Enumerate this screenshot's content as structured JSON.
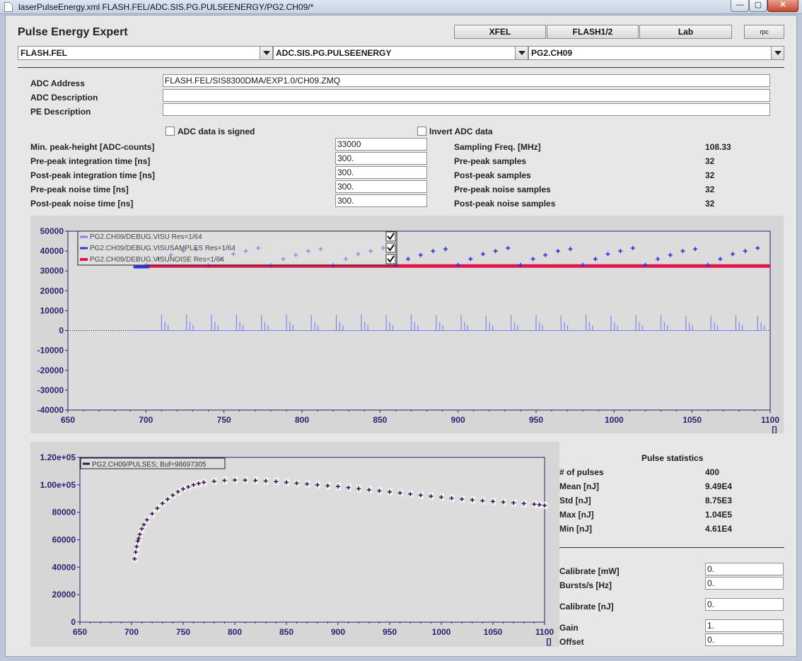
{
  "window": {
    "title": "laserPulseEnergy.xml   FLASH.FEL/ADC.SIS.PG.PULSEENERGY/PG2.CH09/*",
    "min_glyph": "—",
    "max_glyph": "▢",
    "close_glyph": "✕"
  },
  "header": {
    "app_title": "Pulse Energy Expert",
    "buttons": [
      "XFEL",
      "FLASH1/2",
      "Lab"
    ],
    "rpc_label": "rpc"
  },
  "selectors": {
    "facility": "FLASH.FEL",
    "device": "ADC.SIS.PG.PULSEENERGY",
    "channel": "PG2.CH09"
  },
  "adc": {
    "address_label": "ADC Address",
    "address_value": "FLASH.FEL/SIS8300DMA/EXP1.0/CH09.ZMQ",
    "description_label": "ADC Description",
    "description_value": "",
    "pe_description_label": "PE Description",
    "pe_description_value": "",
    "signed_label": "ADC data is signed",
    "signed_checked": false,
    "invert_label": "Invert ADC data",
    "invert_checked": false
  },
  "params_left": [
    {
      "label": "Min. peak-height [ADC-counts]",
      "value": "33000"
    },
    {
      "label": "Pre-peak integration time [ns]",
      "value": "300."
    },
    {
      "label": "Post-peak integration time [ns]",
      "value": "300."
    },
    {
      "label": "Pre-peak noise time [ns]",
      "value": "300."
    },
    {
      "label": "Post-peak noise time [ns]",
      "value": "300."
    }
  ],
  "params_right": [
    {
      "label": "Sampling Freq. [MHz]",
      "value": "108.33"
    },
    {
      "label": "Pre-peak samples",
      "value": "32"
    },
    {
      "label": "Post-peak samples",
      "value": "32"
    },
    {
      "label": "Pre-peak noise samples",
      "value": "32"
    },
    {
      "label": "Post-peak noise samples",
      "value": "32"
    }
  ],
  "stats": {
    "title": "Pulse statistics",
    "rows": [
      {
        "label": "# of pulses",
        "value": "400"
      },
      {
        "label": "Mean [nJ]",
        "value": "9.49E4"
      },
      {
        "label": "Std [nJ]",
        "value": "8.75E3"
      },
      {
        "label": "Max [nJ]",
        "value": "1.04E5"
      },
      {
        "label": "Min [nJ]",
        "value": "4.61E4"
      }
    ]
  },
  "calib": [
    {
      "label": "Calibrate [mW]",
      "value": "0."
    },
    {
      "label": "Bursts/s [Hz]",
      "value": "0."
    },
    {
      "label": "Calibrate [nJ]",
      "value": "0."
    },
    {
      "label": "Gain",
      "value": "1."
    },
    {
      "label": "Offset",
      "value": "0."
    }
  ],
  "chart_data": [
    {
      "type": "scatter",
      "title": "",
      "xlabel": "[]",
      "ylabel": "",
      "xlim": [
        650,
        1100
      ],
      "ylim": [
        -40000,
        50000
      ],
      "xticks": [
        650,
        700,
        750,
        800,
        850,
        900,
        950,
        1000,
        1050,
        1100
      ],
      "yticks": [
        50000,
        40000,
        30000,
        20000,
        10000,
        0,
        -10000,
        -20000,
        -30000,
        -40000
      ],
      "legend_position": "top-left",
      "legend_checked": [
        true,
        true,
        true
      ],
      "colors": {
        "visu": "#7f86ee",
        "samples": "#2a34d8",
        "noise": "#e0174a",
        "axis": "#2b1f6e"
      },
      "series": [
        {
          "name": "PG2.CH09/DEBUG.VISU Res=1/64",
          "kind": "spikes",
          "x": [
            710,
            726,
            742,
            758,
            774,
            790,
            806,
            822,
            838,
            854,
            870,
            886,
            902,
            918,
            934,
            950,
            966,
            982,
            998,
            1014,
            1030,
            1046,
            1062,
            1078,
            1092
          ],
          "values": [
            8000,
            8200,
            7900,
            8100,
            7800,
            8000,
            7700,
            7900,
            8100,
            7800,
            8000,
            7700,
            7800,
            7600,
            7800,
            7900,
            7700,
            7800,
            7600,
            7700,
            7800,
            7500,
            7600,
            7700,
            7500
          ],
          "baseline": 0,
          "baseline_from": 692
        },
        {
          "name": "PG2.CH09/DEBUG.VISUSAMPLES Res=1/64",
          "kind": "markers",
          "x": [
            700,
            708,
            716,
            724,
            732,
            740,
            748,
            756,
            764,
            772,
            780,
            788,
            796,
            804,
            812,
            820,
            828,
            836,
            844,
            852,
            860,
            868,
            876,
            884,
            892,
            900,
            908,
            916,
            924,
            932,
            940,
            948,
            956,
            964,
            972,
            980,
            988,
            996,
            1004,
            1012,
            1020,
            1028,
            1036,
            1044,
            1052,
            1060,
            1068,
            1076,
            1084,
            1092
          ],
          "values": [
            33000,
            36000,
            38000,
            40000,
            41000,
            33000,
            36000,
            38500,
            40000,
            41500,
            33000,
            36000,
            38000,
            40000,
            41000,
            33000,
            36000,
            38500,
            40000,
            41500,
            33000,
            36000,
            38000,
            40000,
            41000,
            33000,
            36000,
            38500,
            40000,
            41500,
            33000,
            36000,
            38000,
            40000,
            41000,
            33000,
            36000,
            38500,
            40000,
            41500,
            33000,
            36000,
            38000,
            40000,
            41000,
            33000,
            36000,
            38500,
            40000,
            41500
          ],
          "baseline": 32000,
          "baseline_from": 692
        },
        {
          "name": "PG2.CH09/DEBUG.VISUNOISE Res=1/64",
          "kind": "band",
          "x": [
            700,
            1100
          ],
          "values": [
            32500,
            32500
          ]
        }
      ]
    },
    {
      "type": "scatter",
      "title": "",
      "xlabel": "[]",
      "ylabel": "",
      "xlim": [
        650,
        1100
      ],
      "ylim": [
        0,
        120000
      ],
      "xticks": [
        650,
        700,
        750,
        800,
        850,
        900,
        950,
        1000,
        1050,
        1100
      ],
      "yticks": [
        0,
        20000,
        40000,
        60000,
        80000,
        100000,
        120000
      ],
      "ytick_labels": [
        "0",
        "20000",
        "40000",
        "60000",
        "80000",
        "1.00e+05",
        "1.20e+05"
      ],
      "legend_position": "top-left",
      "colors": {
        "points": "#3a1550",
        "axis": "#2b1f6e"
      },
      "series": [
        {
          "name": "PG2.CH09/PULSES; Buf=98697305",
          "x": [
            703,
            704,
            705,
            706,
            707,
            708,
            710,
            712,
            715,
            720,
            725,
            730,
            735,
            740,
            745,
            750,
            755,
            760,
            765,
            770,
            780,
            790,
            800,
            810,
            820,
            830,
            840,
            850,
            860,
            870,
            880,
            890,
            900,
            910,
            920,
            930,
            940,
            950,
            960,
            970,
            980,
            990,
            1000,
            1010,
            1020,
            1030,
            1040,
            1050,
            1060,
            1070,
            1080,
            1090,
            1095,
            1100
          ],
          "values": [
            46100,
            51000,
            55000,
            59000,
            61000,
            64000,
            68000,
            71000,
            74500,
            79000,
            83000,
            86500,
            89500,
            92500,
            95000,
            97000,
            98500,
            100000,
            101000,
            101800,
            102600,
            103200,
            103500,
            103400,
            103200,
            102800,
            102400,
            101800,
            101200,
            100600,
            100000,
            99400,
            98800,
            98000,
            97200,
            96400,
            95600,
            94900,
            94100,
            93300,
            92500,
            91700,
            91000,
            90300,
            89600,
            89000,
            88400,
            87900,
            87400,
            86900,
            86400,
            85900,
            85500,
            85000
          ]
        }
      ]
    }
  ]
}
